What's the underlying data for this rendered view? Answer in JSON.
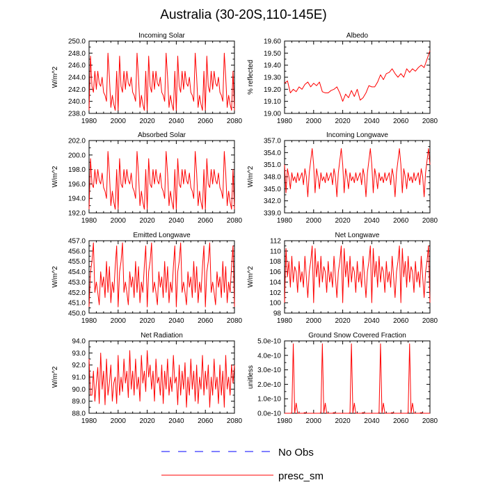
{
  "chart_data": {
    "title": "Australia (30-20S,110-145E)",
    "legend": [
      {
        "name": "No Obs",
        "color": "#0000ff",
        "dash": "dashed"
      },
      {
        "name": "presc_sm",
        "color": "#ff0000",
        "dash": "solid"
      }
    ],
    "panels": [
      {
        "title": "Incoming Solar",
        "type": "line",
        "ylabel": "W/m^2",
        "xlim": [
          1980,
          2080
        ],
        "ylim": [
          238,
          250
        ],
        "xticks": [
          "1980",
          "2000",
          "2020",
          "2040",
          "2060",
          "2080"
        ],
        "yticks": [
          "238.0",
          "240.0",
          "242.0",
          "244.0",
          "246.0",
          "248.0",
          "250.0"
        ],
        "series": {
          "name": "presc_sm",
          "period": 20,
          "x": [
            1980,
            1981,
            1982,
            1983,
            1984,
            1985,
            1986,
            1987,
            1988,
            1989,
            1990,
            1991,
            1992,
            1993,
            1994,
            1995,
            1996,
            1997,
            1998,
            1999
          ],
          "values": [
            238.5,
            247.5,
            242.5,
            241.5,
            245,
            242,
            245,
            243,
            242.5,
            244,
            241.5,
            241,
            240,
            248,
            244,
            239,
            241,
            239.5,
            238.5,
            245
          ]
        }
      },
      {
        "title": "Albedo",
        "type": "line",
        "ylabel": "% reflected",
        "xlim": [
          1980,
          2080
        ],
        "ylim": [
          19.0,
          19.6
        ],
        "xticks": [
          "1980",
          "2000",
          "2020",
          "2040",
          "2060",
          "2080"
        ],
        "yticks": [
          "19.00",
          "19.10",
          "19.20",
          "19.30",
          "19.40",
          "19.50",
          "19.60"
        ],
        "series": {
          "name": "presc_sm",
          "x": [
            1980,
            1982,
            1984,
            1986,
            1988,
            1990,
            1992,
            1994,
            1996,
            1998,
            2000,
            2002,
            2004,
            2006,
            2008,
            2010,
            2012,
            2014,
            2016,
            2018,
            2020,
            2022,
            2024,
            2026,
            2028,
            2030,
            2032,
            2034,
            2036,
            2038,
            2040,
            2042,
            2044,
            2046,
            2048,
            2050,
            2052,
            2054,
            2056,
            2058,
            2060,
            2062,
            2064,
            2066,
            2068,
            2070,
            2072,
            2074,
            2076,
            2078,
            2080
          ],
          "values": [
            19.25,
            19.27,
            19.17,
            19.2,
            19.18,
            19.22,
            19.2,
            19.24,
            19.26,
            19.22,
            19.25,
            19.23,
            19.26,
            19.18,
            19.17,
            19.17,
            19.19,
            19.2,
            19.22,
            19.17,
            19.1,
            19.16,
            19.13,
            19.19,
            19.14,
            19.2,
            19.11,
            19.13,
            19.17,
            19.23,
            19.22,
            19.22,
            19.26,
            19.32,
            19.28,
            19.33,
            19.34,
            19.37,
            19.33,
            19.3,
            19.33,
            19.3,
            19.37,
            19.34,
            19.37,
            19.35,
            19.38,
            19.4,
            19.38,
            19.45,
            19.52
          ]
        }
      },
      {
        "title": "Absorbed Solar",
        "type": "line",
        "ylabel": "W/m^2",
        "xlim": [
          1980,
          2080
        ],
        "ylim": [
          192,
          202
        ],
        "xticks": [
          "1980",
          "2000",
          "2020",
          "2040",
          "2060",
          "2080"
        ],
        "yticks": [
          "192.0",
          "194.0",
          "196.0",
          "198.0",
          "200.0",
          "202.0"
        ],
        "series": {
          "name": "presc_sm",
          "period": 20,
          "x": [
            1980,
            1981,
            1982,
            1983,
            1984,
            1985,
            1986,
            1987,
            1988,
            1989,
            1990,
            1991,
            1992,
            1993,
            1994,
            1995,
            1996,
            1997,
            1998,
            1999
          ],
          "values": [
            192.5,
            199.5,
            196,
            195.5,
            198,
            196,
            198,
            196.5,
            196,
            197.5,
            195.5,
            195,
            194,
            200.5,
            197.5,
            193,
            195,
            193.5,
            192.5,
            198
          ]
        }
      },
      {
        "title": "Incoming Longwave",
        "type": "line",
        "ylabel": "W/m^2",
        "xlim": [
          1980,
          2080
        ],
        "ylim": [
          339,
          357
        ],
        "xticks": [
          "1980",
          "2000",
          "2020",
          "2040",
          "2060",
          "2080"
        ],
        "yticks": [
          "339.0",
          "342.0",
          "345.0",
          "348.0",
          "351.0",
          "354.0",
          "357.0"
        ],
        "series": {
          "name": "presc_sm",
          "period": 20,
          "x": [
            1980,
            1981,
            1982,
            1983,
            1984,
            1985,
            1986,
            1987,
            1988,
            1989,
            1990,
            1991,
            1992,
            1993,
            1994,
            1995,
            1996,
            1997,
            1998,
            1999
          ],
          "values": [
            351,
            344,
            350,
            348,
            345,
            349,
            347,
            348,
            346.5,
            349,
            347,
            348,
            349,
            346,
            350,
            348,
            343,
            349,
            352,
            355
          ]
        }
      },
      {
        "title": "Emitted Longwave",
        "type": "line",
        "ylabel": "W/m^2",
        "xlim": [
          1980,
          2080
        ],
        "ylim": [
          450,
          457
        ],
        "xticks": [
          "1980",
          "2000",
          "2020",
          "2040",
          "2060",
          "2080"
        ],
        "yticks": [
          "450.0",
          "451.0",
          "452.0",
          "453.0",
          "454.0",
          "455.0",
          "456.0",
          "457.0"
        ],
        "series": {
          "name": "presc_sm",
          "period": 20,
          "x": [
            1980,
            1981,
            1982,
            1983,
            1984,
            1985,
            1986,
            1987,
            1988,
            1989,
            1990,
            1991,
            1992,
            1993,
            1994,
            1995,
            1996,
            1997,
            1998,
            1999
          ],
          "values": [
            450.6,
            454,
            455,
            456.8,
            452,
            453,
            452,
            450.8,
            454,
            452.5,
            453.5,
            451.5,
            455,
            452,
            454.5,
            451,
            453,
            452,
            454.5,
            456.5
          ]
        }
      },
      {
        "title": "Net Longwave",
        "type": "line",
        "ylabel": "W/m^2",
        "xlim": [
          1980,
          2080
        ],
        "ylim": [
          98,
          112
        ],
        "xticks": [
          "1980",
          "2000",
          "2020",
          "2040",
          "2060",
          "2080"
        ],
        "yticks": [
          "98",
          "100",
          "102",
          "104",
          "106",
          "108",
          "110",
          "112"
        ],
        "series": {
          "name": "presc_sm",
          "period": 20,
          "x": [
            1980,
            1981,
            1982,
            1983,
            1984,
            1985,
            1986,
            1987,
            1988,
            1989,
            1990,
            1991,
            1992,
            1993,
            1994,
            1995,
            1996,
            1997,
            1998,
            1999
          ],
          "values": [
            100,
            110.5,
            105,
            108,
            103,
            109,
            104,
            107,
            106,
            102,
            108,
            104,
            106,
            103,
            109,
            105,
            101,
            106,
            108,
            111
          ]
        }
      },
      {
        "title": "Net Radiation",
        "type": "line",
        "ylabel": "W/m^2",
        "xlim": [
          1980,
          2080
        ],
        "ylim": [
          88,
          94
        ],
        "xticks": [
          "1980",
          "2000",
          "2020",
          "2040",
          "2060",
          "2080"
        ],
        "yticks": [
          "88.0",
          "89.0",
          "90.0",
          "91.0",
          "92.0",
          "93.0",
          "94.0"
        ],
        "series": {
          "name": "presc_sm",
          "x": [
            1980,
            1981,
            1982,
            1983,
            1984,
            1985,
            1986,
            1987,
            1988,
            1989,
            1990,
            1991,
            1992,
            1993,
            1994,
            1995,
            1996,
            1997,
            1998,
            1999,
            2000,
            2001,
            2002,
            2003,
            2004,
            2005,
            2006,
            2007,
            2008,
            2009,
            2010,
            2011,
            2012,
            2013,
            2014,
            2015,
            2016,
            2017,
            2018,
            2019,
            2020,
            2021,
            2022,
            2023,
            2024,
            2025,
            2026,
            2027,
            2028,
            2029,
            2030,
            2031,
            2032,
            2033,
            2034,
            2035,
            2036,
            2037,
            2038,
            2039,
            2040,
            2041,
            2042,
            2043,
            2044,
            2045,
            2046,
            2047,
            2048,
            2049,
            2050,
            2051,
            2052,
            2053,
            2054,
            2055,
            2056,
            2057,
            2058,
            2059,
            2060,
            2061,
            2062,
            2063,
            2064,
            2065,
            2066,
            2067,
            2068,
            2069,
            2070,
            2071,
            2072,
            2073,
            2074,
            2075,
            2076,
            2077,
            2078,
            2079,
            2080
          ],
          "values": [
            92.5,
            89.5,
            89.5,
            91.5,
            89,
            90.5,
            91.8,
            88.8,
            93,
            90,
            91.5,
            88.7,
            92.5,
            89.5,
            90.5,
            92,
            89,
            90.5,
            91,
            88.8,
            92.8,
            89.5,
            91,
            89.8,
            92.5,
            90.5,
            91.5,
            89.3,
            93.2,
            90,
            91.5,
            89.5,
            92.5,
            90,
            91,
            89,
            92.8,
            90.5,
            91.5,
            89.8,
            93.2,
            91,
            92,
            90,
            91.5,
            89,
            92.5,
            90.5,
            91,
            89.5,
            92,
            88.8,
            91.5,
            90,
            92.5,
            89.5,
            91,
            89.8,
            92.8,
            90.5,
            91,
            88.7,
            92,
            89.5,
            91.5,
            90,
            92.2,
            88.5,
            91,
            89.5,
            92.5,
            90,
            91.5,
            89,
            92,
            88.8,
            91,
            90,
            92.8,
            89.5,
            91.5,
            90,
            92,
            88.5,
            91,
            89.5,
            92.5,
            90,
            91,
            88.8,
            92,
            89.5,
            91.5,
            88.5,
            92.8,
            90,
            91,
            89.5,
            92,
            90.5,
            92
          ]
        }
      },
      {
        "title": "Ground Snow Covered Fraction",
        "type": "line",
        "ylabel": "unitless",
        "xlim": [
          1980,
          2080
        ],
        "ylim": [
          0,
          5e-10
        ],
        "xticks": [
          "1980",
          "2000",
          "2020",
          "2040",
          "2060",
          "2080"
        ],
        "yticks": [
          "0.0e-10",
          "1.0e-10",
          "2.0e-10",
          "3.0e-10",
          "4.0e-10",
          "5.0e-10"
        ],
        "series": {
          "name": "presc_sm",
          "period": 20,
          "x": [
            1980,
            1981,
            1982,
            1983,
            1984,
            1985,
            1986,
            1987,
            1988,
            1989,
            1990,
            1991,
            1992,
            1993,
            1994,
            1995,
            1996,
            1997,
            1998,
            1999
          ],
          "values": [
            0,
            0,
            0,
            0,
            0,
            2e-12,
            4.8e-10,
            0,
            7e-11,
            0,
            0,
            0,
            0,
            0,
            5e-12,
            0,
            0,
            0,
            0,
            0
          ]
        }
      }
    ]
  }
}
